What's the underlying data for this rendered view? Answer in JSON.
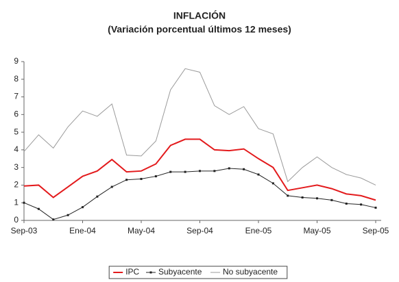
{
  "chart_data": {
    "type": "line",
    "title": "INFLACIÓN",
    "subtitle": "(Variación porcentual últimos 12 meses)",
    "categories": [
      "Sep-03",
      null,
      null,
      null,
      "Ene-04",
      null,
      null,
      null,
      "May-04",
      null,
      null,
      null,
      "Sep-04",
      null,
      null,
      null,
      "Ene-05",
      null,
      null,
      null,
      "May-05",
      null,
      null,
      null,
      "Sep-05"
    ],
    "series": [
      {
        "name": "IPC",
        "color": "#e31a1c",
        "width": 2,
        "values": [
          1.95,
          2.0,
          1.3,
          1.9,
          2.5,
          2.8,
          3.45,
          2.75,
          2.8,
          3.2,
          4.25,
          4.6,
          4.6,
          4.0,
          3.95,
          4.05,
          3.5,
          3.0,
          1.7,
          1.85,
          2.0,
          1.8,
          1.5,
          1.4,
          1.15
        ]
      },
      {
        "name": "Subyacente",
        "color": "#222222",
        "width": 1,
        "markers": true,
        "values": [
          1.0,
          0.65,
          0.05,
          0.3,
          0.75,
          1.35,
          1.9,
          2.3,
          2.35,
          2.5,
          2.75,
          2.75,
          2.8,
          2.8,
          2.95,
          2.9,
          2.6,
          2.1,
          1.4,
          1.3,
          1.25,
          1.15,
          0.95,
          0.9,
          0.72
        ]
      },
      {
        "name": "No subyacente",
        "color": "#9a9a9a",
        "width": 1,
        "values": [
          3.9,
          4.85,
          4.1,
          5.3,
          6.2,
          5.9,
          6.6,
          3.7,
          3.65,
          4.5,
          7.4,
          8.6,
          8.4,
          6.5,
          6.0,
          6.45,
          5.2,
          4.9,
          2.2,
          3.0,
          3.6,
          3.0,
          2.6,
          2.4,
          2.0
        ]
      }
    ],
    "ylim": [
      0,
      9
    ],
    "yticks": [
      0,
      1,
      2,
      3,
      4,
      5,
      6,
      7,
      8,
      9
    ],
    "legend": "bottom"
  }
}
